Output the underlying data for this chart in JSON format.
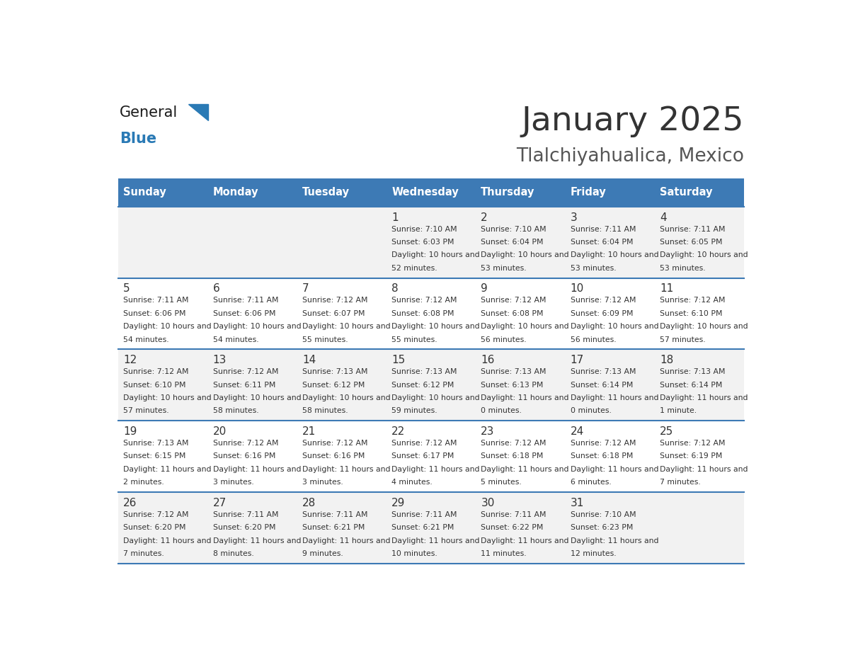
{
  "title": "January 2025",
  "subtitle": "Tlalchiyahualica, Mexico",
  "days_of_week": [
    "Sunday",
    "Monday",
    "Tuesday",
    "Wednesday",
    "Thursday",
    "Friday",
    "Saturday"
  ],
  "header_bg": "#3d7ab5",
  "header_text": "#ffffff",
  "row_bg_even": "#f2f2f2",
  "row_bg_odd": "#ffffff",
  "border_color": "#3d7ab5",
  "cell_text_color": "#333333",
  "title_color": "#333333",
  "subtitle_color": "#555555",
  "calendar": [
    [
      null,
      null,
      null,
      {
        "day": 1,
        "sunrise": "7:10 AM",
        "sunset": "6:03 PM",
        "daylight": "10 hours and 52 minutes"
      },
      {
        "day": 2,
        "sunrise": "7:10 AM",
        "sunset": "6:04 PM",
        "daylight": "10 hours and 53 minutes"
      },
      {
        "day": 3,
        "sunrise": "7:11 AM",
        "sunset": "6:04 PM",
        "daylight": "10 hours and 53 minutes"
      },
      {
        "day": 4,
        "sunrise": "7:11 AM",
        "sunset": "6:05 PM",
        "daylight": "10 hours and 53 minutes"
      }
    ],
    [
      {
        "day": 5,
        "sunrise": "7:11 AM",
        "sunset": "6:06 PM",
        "daylight": "10 hours and 54 minutes"
      },
      {
        "day": 6,
        "sunrise": "7:11 AM",
        "sunset": "6:06 PM",
        "daylight": "10 hours and 54 minutes"
      },
      {
        "day": 7,
        "sunrise": "7:12 AM",
        "sunset": "6:07 PM",
        "daylight": "10 hours and 55 minutes"
      },
      {
        "day": 8,
        "sunrise": "7:12 AM",
        "sunset": "6:08 PM",
        "daylight": "10 hours and 55 minutes"
      },
      {
        "day": 9,
        "sunrise": "7:12 AM",
        "sunset": "6:08 PM",
        "daylight": "10 hours and 56 minutes"
      },
      {
        "day": 10,
        "sunrise": "7:12 AM",
        "sunset": "6:09 PM",
        "daylight": "10 hours and 56 minutes"
      },
      {
        "day": 11,
        "sunrise": "7:12 AM",
        "sunset": "6:10 PM",
        "daylight": "10 hours and 57 minutes"
      }
    ],
    [
      {
        "day": 12,
        "sunrise": "7:12 AM",
        "sunset": "6:10 PM",
        "daylight": "10 hours and 57 minutes"
      },
      {
        "day": 13,
        "sunrise": "7:12 AM",
        "sunset": "6:11 PM",
        "daylight": "10 hours and 58 minutes"
      },
      {
        "day": 14,
        "sunrise": "7:13 AM",
        "sunset": "6:12 PM",
        "daylight": "10 hours and 58 minutes"
      },
      {
        "day": 15,
        "sunrise": "7:13 AM",
        "sunset": "6:12 PM",
        "daylight": "10 hours and 59 minutes"
      },
      {
        "day": 16,
        "sunrise": "7:13 AM",
        "sunset": "6:13 PM",
        "daylight": "11 hours and 0 minutes"
      },
      {
        "day": 17,
        "sunrise": "7:13 AM",
        "sunset": "6:14 PM",
        "daylight": "11 hours and 0 minutes"
      },
      {
        "day": 18,
        "sunrise": "7:13 AM",
        "sunset": "6:14 PM",
        "daylight": "11 hours and 1 minute"
      }
    ],
    [
      {
        "day": 19,
        "sunrise": "7:13 AM",
        "sunset": "6:15 PM",
        "daylight": "11 hours and 2 minutes"
      },
      {
        "day": 20,
        "sunrise": "7:12 AM",
        "sunset": "6:16 PM",
        "daylight": "11 hours and 3 minutes"
      },
      {
        "day": 21,
        "sunrise": "7:12 AM",
        "sunset": "6:16 PM",
        "daylight": "11 hours and 3 minutes"
      },
      {
        "day": 22,
        "sunrise": "7:12 AM",
        "sunset": "6:17 PM",
        "daylight": "11 hours and 4 minutes"
      },
      {
        "day": 23,
        "sunrise": "7:12 AM",
        "sunset": "6:18 PM",
        "daylight": "11 hours and 5 minutes"
      },
      {
        "day": 24,
        "sunrise": "7:12 AM",
        "sunset": "6:18 PM",
        "daylight": "11 hours and 6 minutes"
      },
      {
        "day": 25,
        "sunrise": "7:12 AM",
        "sunset": "6:19 PM",
        "daylight": "11 hours and 7 minutes"
      }
    ],
    [
      {
        "day": 26,
        "sunrise": "7:12 AM",
        "sunset": "6:20 PM",
        "daylight": "11 hours and 7 minutes"
      },
      {
        "day": 27,
        "sunrise": "7:11 AM",
        "sunset": "6:20 PM",
        "daylight": "11 hours and 8 minutes"
      },
      {
        "day": 28,
        "sunrise": "7:11 AM",
        "sunset": "6:21 PM",
        "daylight": "11 hours and 9 minutes"
      },
      {
        "day": 29,
        "sunrise": "7:11 AM",
        "sunset": "6:21 PM",
        "daylight": "11 hours and 10 minutes"
      },
      {
        "day": 30,
        "sunrise": "7:11 AM",
        "sunset": "6:22 PM",
        "daylight": "11 hours and 11 minutes"
      },
      {
        "day": 31,
        "sunrise": "7:10 AM",
        "sunset": "6:23 PM",
        "daylight": "11 hours and 12 minutes"
      },
      null
    ]
  ]
}
